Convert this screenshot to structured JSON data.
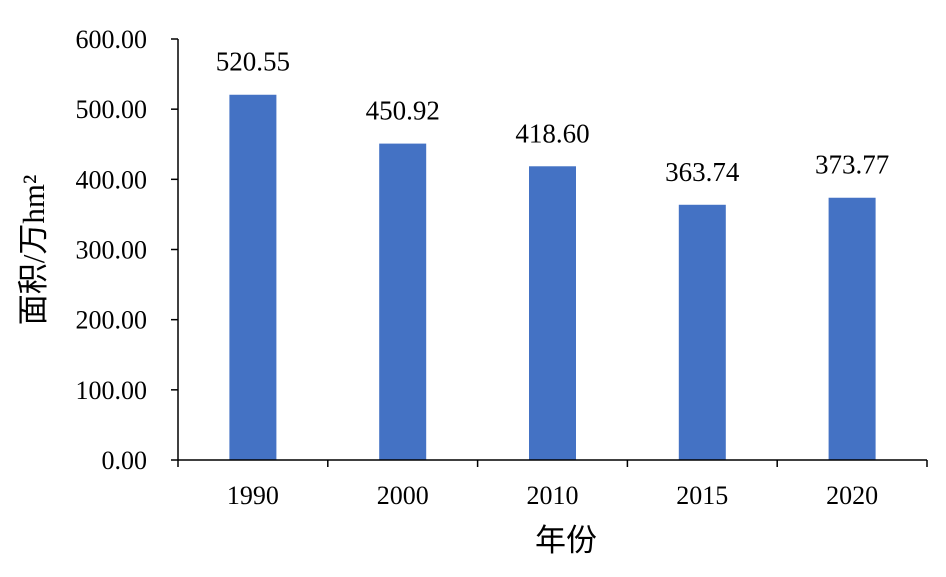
{
  "chart_data": {
    "type": "bar",
    "categories": [
      "1990",
      "2000",
      "2010",
      "2015",
      "2020"
    ],
    "values": [
      520.55,
      450.92,
      418.6,
      363.74,
      373.77
    ],
    "value_labels": [
      "520.55",
      "450.92",
      "418.60",
      "363.74",
      "373.77"
    ],
    "title": "",
    "xlabel": "年份",
    "ylabel": "面积/万hm²",
    "ylim": [
      0,
      600
    ],
    "yticks": [
      "0.00",
      "100.00",
      "200.00",
      "300.00",
      "400.00",
      "500.00",
      "600.00"
    ],
    "grid": false,
    "legend": "none",
    "bar_color": "#4472C4"
  }
}
